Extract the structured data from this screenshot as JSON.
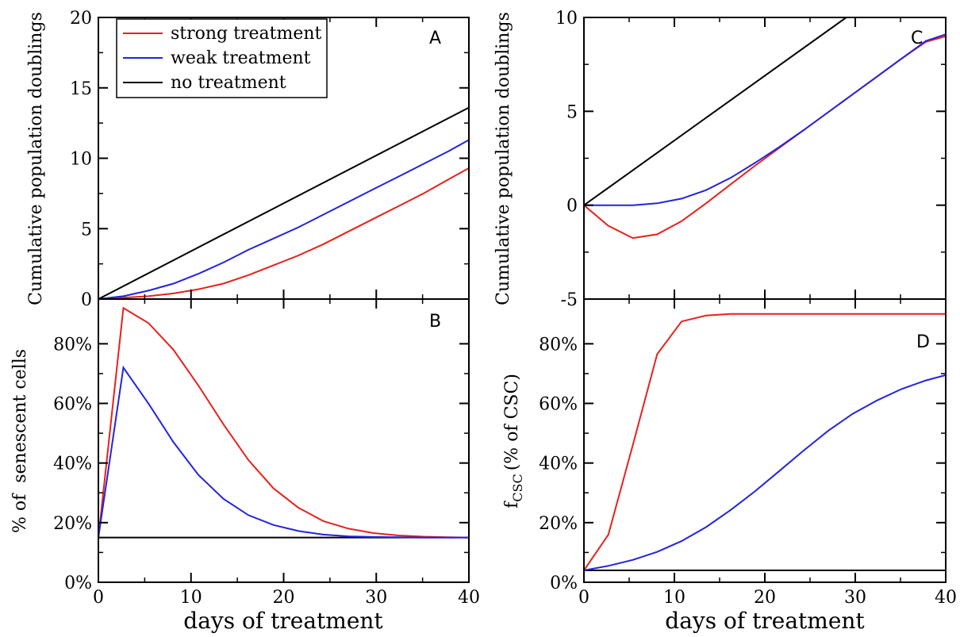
{
  "colors": {
    "strong": "#e8211b",
    "weak": "#2323e0",
    "none": "#000000"
  },
  "chart_data": [
    {
      "panel": "A",
      "type": "line",
      "ylabel": "Cumulative population doublings",
      "xlabel": "",
      "xlim": [
        0,
        40
      ],
      "ylim": [
        0,
        20
      ],
      "xticks": [],
      "yticks": [
        {
          "v": 0,
          "label": "0"
        },
        {
          "v": 5,
          "label": "5"
        },
        {
          "v": 10,
          "label": "10"
        },
        {
          "v": 15,
          "label": "15"
        },
        {
          "v": 20,
          "label": "20"
        }
      ],
      "legend": {
        "placement": "top-left",
        "entries": [
          {
            "label": "strong treatment",
            "color_key": "strong"
          },
          {
            "label": "weak treatment",
            "color_key": "weak"
          },
          {
            "label": "no treatment",
            "color_key": "none"
          }
        ]
      },
      "series": [
        {
          "name": "strong treatment",
          "color_key": "strong",
          "x": [
            0,
            2.7,
            5.4,
            8.1,
            10.8,
            13.5,
            16.2,
            18.9,
            21.6,
            24.3,
            27,
            29.7,
            32.4,
            35.1,
            37.8,
            40
          ],
          "y": [
            0,
            0.1,
            0.2,
            0.4,
            0.7,
            1.1,
            1.7,
            2.4,
            3.1,
            3.9,
            4.8,
            5.7,
            6.6,
            7.5,
            8.5,
            9.3
          ]
        },
        {
          "name": "weak treatment",
          "color_key": "weak",
          "x": [
            0,
            2.7,
            5.4,
            8.1,
            10.8,
            13.5,
            16.2,
            18.9,
            21.6,
            24.3,
            27,
            29.7,
            32.4,
            35.1,
            37.8,
            40
          ],
          "y": [
            0,
            0.2,
            0.6,
            1.1,
            1.8,
            2.6,
            3.5,
            4.3,
            5.1,
            6.0,
            6.9,
            7.8,
            8.7,
            9.6,
            10.5,
            11.3
          ]
        },
        {
          "name": "no treatment",
          "color_key": "none",
          "x": [
            0,
            40
          ],
          "y": [
            0,
            13.6
          ]
        }
      ]
    },
    {
      "panel": "B",
      "type": "line",
      "ylabel": "% of  senescent cells",
      "xlabel": "days of treatment",
      "xlim": [
        0,
        40
      ],
      "ylim": [
        0,
        95
      ],
      "xticks": [
        {
          "v": 0,
          "label": "0"
        },
        {
          "v": 10,
          "label": "10"
        },
        {
          "v": 20,
          "label": "20"
        },
        {
          "v": 30,
          "label": "30"
        },
        {
          "v": 40,
          "label": "40"
        }
      ],
      "yticks": [
        {
          "v": 0,
          "label": "0%"
        },
        {
          "v": 20,
          "label": "20%"
        },
        {
          "v": 40,
          "label": "40%"
        },
        {
          "v": 60,
          "label": "60%"
        },
        {
          "v": 80,
          "label": "80%"
        }
      ],
      "series": [
        {
          "name": "strong treatment",
          "color_key": "strong",
          "x": [
            0,
            2.7,
            5.4,
            8.1,
            10.8,
            13.5,
            16.2,
            18.9,
            21.6,
            24.3,
            27,
            29.7,
            32.4,
            35.1,
            37.8,
            40
          ],
          "y": [
            15,
            92,
            87,
            78,
            66,
            53,
            41,
            31.5,
            25,
            20.5,
            18,
            16.5,
            15.7,
            15.3,
            15.1,
            15
          ]
        },
        {
          "name": "weak treatment",
          "color_key": "weak",
          "x": [
            0,
            2.7,
            5.4,
            8.1,
            10.8,
            13.5,
            16.2,
            18.9,
            21.6,
            24.3,
            27,
            29.7,
            32.4,
            35.1,
            37.8,
            40
          ],
          "y": [
            15,
            72,
            60,
            47,
            36,
            28,
            22.5,
            19.2,
            17.2,
            16,
            15.4,
            15.2,
            15.1,
            15,
            15,
            15
          ]
        },
        {
          "name": "no treatment",
          "color_key": "none",
          "x": [
            0,
            40
          ],
          "y": [
            15,
            15
          ]
        }
      ]
    },
    {
      "panel": "C",
      "type": "line",
      "ylabel": "Cumulative population doublings",
      "xlabel": "",
      "xlim": [
        0,
        40
      ],
      "ylim": [
        -5,
        10
      ],
      "xticks": [],
      "yticks": [
        {
          "v": -5,
          "label": "-5"
        },
        {
          "v": 0,
          "label": "0"
        },
        {
          "v": 5,
          "label": "5"
        },
        {
          "v": 10,
          "label": "10"
        }
      ],
      "series": [
        {
          "name": "strong treatment",
          "color_key": "strong",
          "x": [
            0,
            2.7,
            5.4,
            8.1,
            10.8,
            13.5,
            16.2,
            18.9,
            21.6,
            24.3,
            27,
            29.7,
            32.4,
            35.1,
            37.8,
            40
          ],
          "y": [
            0,
            -1.1,
            -1.75,
            -1.55,
            -0.85,
            0.1,
            1.1,
            2.1,
            3.05,
            4.0,
            4.95,
            5.9,
            6.85,
            7.8,
            8.7,
            9.0
          ]
        },
        {
          "name": "weak treatment",
          "color_key": "weak",
          "x": [
            0,
            2.7,
            5.4,
            8.1,
            10.8,
            13.5,
            16.2,
            18.9,
            21.6,
            24.3,
            27,
            29.7,
            32.4,
            35.1,
            37.8,
            40
          ],
          "y": [
            0,
            0,
            0,
            0.1,
            0.35,
            0.8,
            1.45,
            2.25,
            3.1,
            4.0,
            4.95,
            5.9,
            6.85,
            7.8,
            8.75,
            9.1
          ]
        },
        {
          "name": "no treatment",
          "color_key": "none",
          "x": [
            0,
            29
          ],
          "y": [
            0,
            10
          ]
        }
      ]
    },
    {
      "panel": "D",
      "type": "line",
      "ylabel_main": "f",
      "ylabel_sub": "CSC",
      "ylabel_rest": "(% of CSC)",
      "xlabel": "days of treatment",
      "xlim": [
        0,
        40
      ],
      "ylim": [
        0,
        95
      ],
      "xticks": [
        {
          "v": 0,
          "label": "0"
        },
        {
          "v": 10,
          "label": "10"
        },
        {
          "v": 20,
          "label": "20"
        },
        {
          "v": 30,
          "label": "30"
        },
        {
          "v": 40,
          "label": "40"
        }
      ],
      "yticks": [
        {
          "v": 0,
          "label": "0%"
        },
        {
          "v": 20,
          "label": "20%"
        },
        {
          "v": 40,
          "label": "40%"
        },
        {
          "v": 60,
          "label": "60%"
        },
        {
          "v": 80,
          "label": "80%"
        }
      ],
      "series": [
        {
          "name": "strong treatment",
          "color_key": "strong",
          "x": [
            0,
            2.7,
            5.4,
            8.1,
            10.8,
            13.5,
            16.2,
            18.9,
            21.6,
            24.3,
            27,
            29.7,
            32.4,
            35.1,
            37.8,
            40
          ],
          "y": [
            4,
            16,
            46,
            76.5,
            87.5,
            89.5,
            90,
            90,
            90,
            90,
            90,
            90,
            90,
            90,
            90,
            90
          ]
        },
        {
          "name": "weak treatment",
          "color_key": "weak",
          "x": [
            0,
            2.7,
            5.4,
            8.1,
            10.8,
            13.5,
            16.2,
            18.9,
            21.6,
            24.3,
            27,
            29.7,
            32.4,
            35.1,
            37.8,
            40
          ],
          "y": [
            4,
            5.5,
            7.5,
            10.2,
            13.8,
            18.5,
            24.2,
            30.5,
            37.3,
            44.2,
            50.8,
            56.5,
            61,
            64.8,
            67.7,
            69.5
          ]
        },
        {
          "name": "no treatment",
          "color_key": "none",
          "x": [
            0,
            40
          ],
          "y": [
            4,
            4
          ]
        }
      ]
    }
  ]
}
